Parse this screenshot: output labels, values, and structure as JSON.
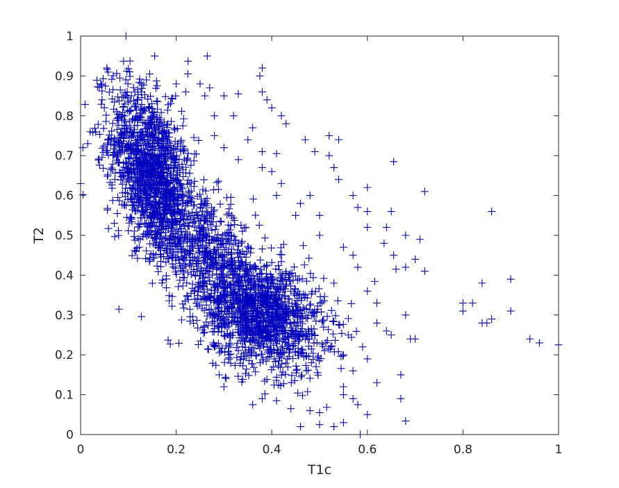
{
  "chart_data": {
    "type": "scatter",
    "title": "",
    "xlabel": "T1c",
    "ylabel": "T2",
    "xlim": [
      0,
      1
    ],
    "ylim": [
      0,
      1
    ],
    "xticks": [
      "0",
      "0.2",
      "0.4",
      "0.6",
      "0.8",
      "1"
    ],
    "yticks": [
      "0",
      "0.1",
      "0.2",
      "0.3",
      "0.4",
      "0.5",
      "0.6",
      "0.7",
      "0.8",
      "0.9",
      "1"
    ],
    "grid": false,
    "legend": "none",
    "marker": "plus",
    "color": "#0000bf",
    "series": [
      {
        "name": "",
        "points": [
          [
            0.095,
            1.0
          ],
          [
            0.155,
            0.95
          ],
          [
            0.265,
            0.95
          ],
          [
            0.225,
            0.937
          ],
          [
            0.09,
            0.937
          ],
          [
            0.38,
            0.92
          ],
          [
            0.1,
            0.918
          ],
          [
            0.055,
            0.92
          ],
          [
            0.375,
            0.9
          ],
          [
            0.25,
            0.88
          ],
          [
            0.38,
            0.86
          ],
          [
            0.33,
            0.855
          ],
          [
            0.045,
            0.84
          ],
          [
            0.39,
            0.84
          ],
          [
            0.4,
            0.82
          ],
          [
            0.42,
            0.8
          ],
          [
            0.43,
            0.78
          ],
          [
            0.32,
            0.8
          ],
          [
            0.36,
            0.77
          ],
          [
            0.02,
            0.76
          ],
          [
            0.015,
            0.73
          ],
          [
            0.005,
            0.72
          ],
          [
            0.0,
            0.63
          ],
          [
            0.35,
            0.74
          ],
          [
            0.38,
            0.71
          ],
          [
            0.41,
            0.705
          ],
          [
            0.47,
            0.74
          ],
          [
            0.49,
            0.71
          ],
          [
            0.52,
            0.75
          ],
          [
            0.54,
            0.74
          ],
          [
            0.52,
            0.7
          ],
          [
            0.53,
            0.67
          ],
          [
            0.54,
            0.64
          ],
          [
            0.655,
            0.685
          ],
          [
            0.72,
            0.61
          ],
          [
            0.6,
            0.62
          ],
          [
            0.57,
            0.6
          ],
          [
            0.58,
            0.57
          ],
          [
            0.6,
            0.56
          ],
          [
            0.65,
            0.56
          ],
          [
            0.6,
            0.52
          ],
          [
            0.64,
            0.52
          ],
          [
            0.635,
            0.48
          ],
          [
            0.68,
            0.5
          ],
          [
            0.71,
            0.49
          ],
          [
            0.655,
            0.45
          ],
          [
            0.66,
            0.415
          ],
          [
            0.68,
            0.42
          ],
          [
            0.7,
            0.44
          ],
          [
            0.72,
            0.41
          ],
          [
            0.86,
            0.56
          ],
          [
            0.9,
            0.39
          ],
          [
            0.84,
            0.38
          ],
          [
            0.8,
            0.33
          ],
          [
            0.82,
            0.33
          ],
          [
            0.8,
            0.31
          ],
          [
            0.9,
            0.31
          ],
          [
            0.84,
            0.28
          ],
          [
            0.85,
            0.28
          ],
          [
            0.86,
            0.29
          ],
          [
            0.94,
            0.24
          ],
          [
            0.96,
            0.23
          ],
          [
            1.0,
            0.225
          ],
          [
            0.68,
            0.3
          ],
          [
            0.7,
            0.24
          ],
          [
            0.69,
            0.24
          ],
          [
            0.62,
            0.28
          ],
          [
            0.64,
            0.26
          ],
          [
            0.65,
            0.25
          ],
          [
            0.68,
            0.034
          ],
          [
            0.67,
            0.09
          ],
          [
            0.67,
            0.15
          ],
          [
            0.62,
            0.13
          ],
          [
            0.6,
            0.05
          ],
          [
            0.585,
            0.0
          ],
          [
            0.55,
            0.03
          ],
          [
            0.53,
            0.02
          ],
          [
            0.5,
            0.025
          ],
          [
            0.46,
            0.02
          ],
          [
            0.44,
            0.065
          ],
          [
            0.41,
            0.085
          ],
          [
            0.38,
            0.09
          ],
          [
            0.36,
            0.075
          ],
          [
            0.48,
            0.06
          ],
          [
            0.5,
            0.055
          ],
          [
            0.55,
            0.1
          ],
          [
            0.57,
            0.09
          ],
          [
            0.58,
            0.075
          ],
          [
            0.3,
            0.12
          ],
          [
            0.29,
            0.15
          ],
          [
            0.55,
            0.12
          ],
          [
            0.57,
            0.16
          ],
          [
            0.55,
            0.2
          ],
          [
            0.59,
            0.22
          ],
          [
            0.6,
            0.19
          ],
          [
            0.56,
            0.25
          ],
          [
            0.62,
            0.33
          ],
          [
            0.6,
            0.36
          ],
          [
            0.58,
            0.42
          ],
          [
            0.57,
            0.45
          ],
          [
            0.53,
            0.38
          ],
          [
            0.55,
            0.47
          ],
          [
            0.5,
            0.55
          ],
          [
            0.5,
            0.5
          ],
          [
            0.45,
            0.55
          ],
          [
            0.46,
            0.58
          ],
          [
            0.48,
            0.6
          ],
          [
            0.42,
            0.63
          ],
          [
            0.41,
            0.6
          ],
          [
            0.4,
            0.66
          ],
          [
            0.38,
            0.67
          ],
          [
            0.33,
            0.69
          ],
          [
            0.3,
            0.72
          ],
          [
            0.28,
            0.75
          ],
          [
            0.28,
            0.8
          ],
          [
            0.3,
            0.85
          ],
          [
            0.26,
            0.85
          ],
          [
            0.27,
            0.87
          ],
          [
            0.2,
            0.88
          ],
          [
            0.22,
            0.86
          ]
        ]
      }
    ],
    "density_clusters": [
      {
        "cx": 0.15,
        "cy": 0.65,
        "sx": 0.045,
        "sy": 0.11,
        "rho": -0.45,
        "n": 1400
      },
      {
        "cx": 0.38,
        "cy": 0.3,
        "sx": 0.065,
        "sy": 0.07,
        "rho": -0.25,
        "n": 1300
      },
      {
        "cx": 0.27,
        "cy": 0.45,
        "sx": 0.05,
        "sy": 0.07,
        "rho": -0.35,
        "n": 500
      }
    ]
  }
}
